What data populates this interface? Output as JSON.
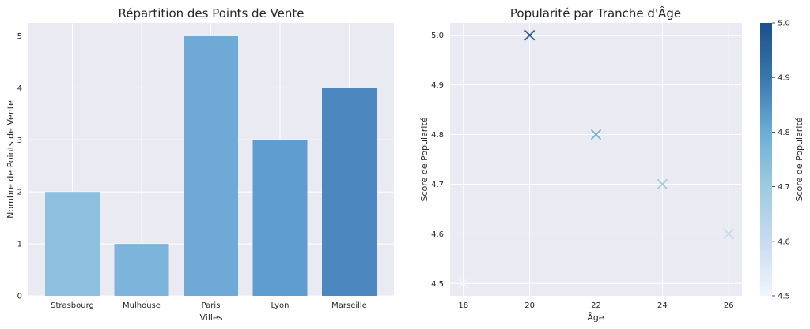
{
  "chart_data": [
    {
      "type": "bar",
      "title": "Répartition des Points de Vente",
      "xlabel": "Villes",
      "ylabel": "Nombre de Points de Vente",
      "categories": [
        "Strasbourg",
        "Mulhouse",
        "Paris",
        "Lyon",
        "Marseille"
      ],
      "values": [
        2,
        1,
        5,
        3,
        4
      ],
      "bar_colors": [
        "#8dbfdf",
        "#7cb4db",
        "#6fa9d6",
        "#5f9ccf",
        "#4d87bf"
      ],
      "ylim": [
        0,
        5.25
      ],
      "yticks": [
        "0",
        "1",
        "2",
        "3",
        "4",
        "5"
      ],
      "grid": true
    },
    {
      "type": "scatter",
      "title": "Popularité par Tranche d'Âge",
      "xlabel": "Âge",
      "ylabel": "Score de Popularité",
      "marker": "x",
      "points": [
        {
          "x": 18,
          "y": 4.5
        },
        {
          "x": 20,
          "y": 5.0
        },
        {
          "x": 22,
          "y": 4.8
        },
        {
          "x": 24,
          "y": 4.7
        },
        {
          "x": 26,
          "y": 4.6
        }
      ],
      "xlim": [
        17.6,
        26.4
      ],
      "ylim": [
        4.475,
        5.025
      ],
      "xticks": [
        "18",
        "20",
        "22",
        "24",
        "26"
      ],
      "yticks": [
        "4.5",
        "4.6",
        "4.7",
        "4.8",
        "4.9",
        "5.0"
      ],
      "grid": true,
      "colorbar": {
        "label": "Score de Popularité",
        "range": [
          4.5,
          5.0
        ],
        "ticks": [
          "4.5",
          "4.6",
          "4.7",
          "4.8",
          "4.9",
          "5.0"
        ],
        "colors": [
          "#f0f6fc",
          "#c6dbef",
          "#9ecae1",
          "#6baed6",
          "#3a76ad",
          "#1c4f8c"
        ]
      }
    }
  ]
}
